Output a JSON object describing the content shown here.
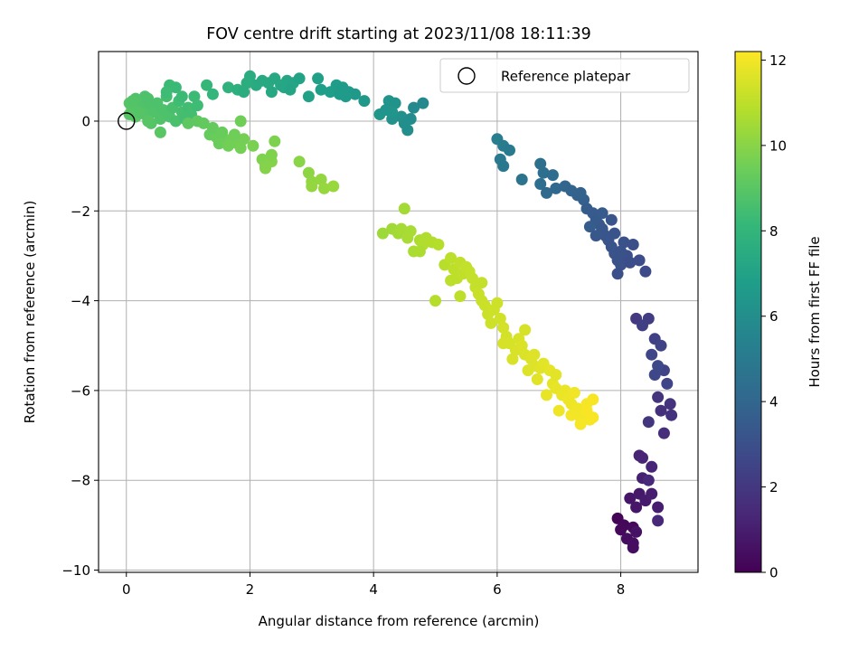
{
  "chart_data": {
    "type": "scatter",
    "title": "FOV centre drift starting at 2023/11/08 18:11:39",
    "xlabel": "Angular distance from reference (arcmin)",
    "ylabel": "Rotation from reference (arcmin)",
    "xlim": [
      -0.45,
      9.25
    ],
    "ylim": [
      -10.05,
      1.55
    ],
    "xticks": [
      0,
      2,
      4,
      6,
      8
    ],
    "yticks": [
      0,
      -2,
      -4,
      -6,
      -8,
      -10
    ],
    "ytick_labels": [
      "0",
      "−2",
      "−4",
      "−6",
      "−8",
      "−10"
    ],
    "grid": true,
    "legend": {
      "position": "top-right",
      "label": "Reference platepar"
    },
    "reference_point": {
      "x": 0,
      "y": 0,
      "marker": "hollow-circle"
    },
    "colorbar": {
      "label": "Hours from first FF file",
      "min": 0,
      "max": 12.2,
      "ticks": [
        0,
        2,
        4,
        6,
        8,
        10,
        12
      ],
      "colormap": "viridis",
      "stops": [
        "#440154",
        "#482878",
        "#3e4989",
        "#31688e",
        "#26828e",
        "#1f9e89",
        "#35b779",
        "#6ece58",
        "#b5de2b",
        "#fde725"
      ]
    },
    "points": [
      {
        "x": 7.95,
        "y": -8.85,
        "c": 0.1
      },
      {
        "x": 8.05,
        "y": -9.0,
        "c": 0.2
      },
      {
        "x": 8.2,
        "y": -9.05,
        "c": 0.3
      },
      {
        "x": 8.1,
        "y": -9.3,
        "c": 0.4
      },
      {
        "x": 8.2,
        "y": -9.5,
        "c": 0.5
      },
      {
        "x": 8.25,
        "y": -9.15,
        "c": 0.6
      },
      {
        "x": 8.15,
        "y": -8.4,
        "c": 0.7
      },
      {
        "x": 8.3,
        "y": -8.3,
        "c": 0.8
      },
      {
        "x": 8.4,
        "y": -8.45,
        "c": 0.9
      },
      {
        "x": 8.6,
        "y": -8.6,
        "c": 1.0
      },
      {
        "x": 8.35,
        "y": -7.95,
        "c": 1.1
      },
      {
        "x": 8.3,
        "y": -7.45,
        "c": 1.2
      },
      {
        "x": 8.5,
        "y": -7.7,
        "c": 1.3
      },
      {
        "x": 8.45,
        "y": -8.0,
        "c": 1.35
      },
      {
        "x": 8.6,
        "y": -8.9,
        "c": 1.4
      },
      {
        "x": 8.0,
        "y": -9.1,
        "c": 0.25
      },
      {
        "x": 8.25,
        "y": -8.6,
        "c": 0.75
      },
      {
        "x": 8.5,
        "y": -8.3,
        "c": 1.0
      },
      {
        "x": 8.35,
        "y": -7.5,
        "c": 1.25
      },
      {
        "x": 8.2,
        "y": -9.4,
        "c": 0.45
      },
      {
        "x": 8.25,
        "y": -4.4,
        "c": 2.1
      },
      {
        "x": 8.45,
        "y": -4.4,
        "c": 2.2
      },
      {
        "x": 8.35,
        "y": -4.55,
        "c": 2.3
      },
      {
        "x": 8.55,
        "y": -4.85,
        "c": 2.4
      },
      {
        "x": 8.65,
        "y": -5.0,
        "c": 2.45
      },
      {
        "x": 8.7,
        "y": -5.55,
        "c": 2.5
      },
      {
        "x": 8.75,
        "y": -5.85,
        "c": 2.55
      },
      {
        "x": 8.5,
        "y": -5.2,
        "c": 2.6
      },
      {
        "x": 8.55,
        "y": -5.65,
        "c": 2.65
      },
      {
        "x": 8.6,
        "y": -5.45,
        "c": 2.7
      },
      {
        "x": 8.8,
        "y": -6.3,
        "c": 1.8
      },
      {
        "x": 8.82,
        "y": -6.55,
        "c": 1.75
      },
      {
        "x": 8.65,
        "y": -6.45,
        "c": 1.7
      },
      {
        "x": 8.7,
        "y": -6.95,
        "c": 1.6
      },
      {
        "x": 8.45,
        "y": -6.7,
        "c": 1.9
      },
      {
        "x": 8.6,
        "y": -6.15,
        "c": 1.85
      },
      {
        "x": 6.0,
        "y": -0.4,
        "c": 5.2
      },
      {
        "x": 6.1,
        "y": -0.55,
        "c": 5.1
      },
      {
        "x": 6.2,
        "y": -0.65,
        "c": 5.0
      },
      {
        "x": 6.05,
        "y": -0.85,
        "c": 5.0
      },
      {
        "x": 6.1,
        "y": -1.0,
        "c": 4.9
      },
      {
        "x": 6.4,
        "y": -1.3,
        "c": 4.7
      },
      {
        "x": 6.7,
        "y": -0.95,
        "c": 4.5
      },
      {
        "x": 6.75,
        "y": -1.15,
        "c": 4.4
      },
      {
        "x": 6.9,
        "y": -1.2,
        "c": 4.3
      },
      {
        "x": 6.7,
        "y": -1.4,
        "c": 4.4
      },
      {
        "x": 6.8,
        "y": -1.6,
        "c": 4.2
      },
      {
        "x": 6.95,
        "y": -1.5,
        "c": 4.1
      },
      {
        "x": 7.1,
        "y": -1.45,
        "c": 4.0
      },
      {
        "x": 7.2,
        "y": -1.55,
        "c": 3.9
      },
      {
        "x": 7.3,
        "y": -1.65,
        "c": 3.8
      },
      {
        "x": 7.4,
        "y": -1.75,
        "c": 3.7
      },
      {
        "x": 7.45,
        "y": -1.95,
        "c": 3.6
      },
      {
        "x": 7.55,
        "y": -2.05,
        "c": 3.5
      },
      {
        "x": 7.6,
        "y": -2.2,
        "c": 3.45
      },
      {
        "x": 7.65,
        "y": -2.3,
        "c": 3.4
      },
      {
        "x": 7.7,
        "y": -2.4,
        "c": 3.35
      },
      {
        "x": 7.75,
        "y": -2.55,
        "c": 3.3
      },
      {
        "x": 7.8,
        "y": -2.65,
        "c": 3.25
      },
      {
        "x": 7.85,
        "y": -2.8,
        "c": 3.2
      },
      {
        "x": 7.9,
        "y": -2.95,
        "c": 3.15
      },
      {
        "x": 7.95,
        "y": -3.1,
        "c": 3.1
      },
      {
        "x": 8.0,
        "y": -3.2,
        "c": 3.05
      },
      {
        "x": 8.1,
        "y": -3.0,
        "c": 3.0
      },
      {
        "x": 8.2,
        "y": -2.75,
        "c": 2.95
      },
      {
        "x": 8.3,
        "y": -3.1,
        "c": 2.9
      },
      {
        "x": 8.4,
        "y": -3.35,
        "c": 2.8
      },
      {
        "x": 7.95,
        "y": -3.4,
        "c": 3.0
      },
      {
        "x": 7.85,
        "y": -2.2,
        "c": 3.3
      },
      {
        "x": 7.9,
        "y": -2.5,
        "c": 3.2
      },
      {
        "x": 8.0,
        "y": -2.9,
        "c": 3.1
      },
      {
        "x": 7.7,
        "y": -2.05,
        "c": 3.5
      },
      {
        "x": 7.5,
        "y": -2.35,
        "c": 3.55
      },
      {
        "x": 7.35,
        "y": -1.6,
        "c": 3.85
      },
      {
        "x": 7.6,
        "y": -2.55,
        "c": 3.35
      },
      {
        "x": 8.05,
        "y": -2.7,
        "c": 3.05
      },
      {
        "x": 8.15,
        "y": -3.15,
        "c": 2.95
      },
      {
        "x": 4.1,
        "y": 0.15,
        "c": 6.4
      },
      {
        "x": 4.25,
        "y": 0.45,
        "c": 6.3
      },
      {
        "x": 4.35,
        "y": 0.4,
        "c": 6.25
      },
      {
        "x": 4.2,
        "y": 0.25,
        "c": 6.35
      },
      {
        "x": 4.3,
        "y": 0.05,
        "c": 6.2
      },
      {
        "x": 4.45,
        "y": 0.1,
        "c": 6.1
      },
      {
        "x": 4.55,
        "y": -0.2,
        "c": 6.0
      },
      {
        "x": 4.6,
        "y": 0.05,
        "c": 5.9
      },
      {
        "x": 4.65,
        "y": 0.3,
        "c": 5.8
      },
      {
        "x": 4.8,
        "y": 0.4,
        "c": 5.7
      },
      {
        "x": 4.5,
        "y": -0.05,
        "c": 6.05
      },
      {
        "x": 4.3,
        "y": 0.2,
        "c": 6.3
      },
      {
        "x": 1.1,
        "y": 0.55,
        "c": 8.3
      },
      {
        "x": 1.3,
        "y": 0.8,
        "c": 8.1
      },
      {
        "x": 1.4,
        "y": 0.6,
        "c": 8.0
      },
      {
        "x": 1.65,
        "y": 0.75,
        "c": 7.8
      },
      {
        "x": 1.8,
        "y": 0.7,
        "c": 7.7
      },
      {
        "x": 1.9,
        "y": 0.65,
        "c": 7.6
      },
      {
        "x": 2.0,
        "y": 1.0,
        "c": 7.5
      },
      {
        "x": 2.1,
        "y": 0.8,
        "c": 7.45
      },
      {
        "x": 2.2,
        "y": 0.9,
        "c": 7.4
      },
      {
        "x": 2.3,
        "y": 0.85,
        "c": 7.35
      },
      {
        "x": 2.4,
        "y": 0.95,
        "c": 7.3
      },
      {
        "x": 2.5,
        "y": 0.8,
        "c": 7.25
      },
      {
        "x": 2.6,
        "y": 0.9,
        "c": 7.2
      },
      {
        "x": 2.7,
        "y": 0.85,
        "c": 7.15
      },
      {
        "x": 2.55,
        "y": 0.75,
        "c": 7.2
      },
      {
        "x": 2.65,
        "y": 0.7,
        "c": 7.1
      },
      {
        "x": 2.8,
        "y": 0.95,
        "c": 7.05
      },
      {
        "x": 2.95,
        "y": 0.55,
        "c": 6.95
      },
      {
        "x": 3.1,
        "y": 0.95,
        "c": 6.9
      },
      {
        "x": 3.15,
        "y": 0.7,
        "c": 6.85
      },
      {
        "x": 3.3,
        "y": 0.65,
        "c": 6.8
      },
      {
        "x": 3.4,
        "y": 0.8,
        "c": 6.75
      },
      {
        "x": 3.5,
        "y": 0.75,
        "c": 6.7
      },
      {
        "x": 3.45,
        "y": 0.6,
        "c": 6.7
      },
      {
        "x": 3.6,
        "y": 0.65,
        "c": 6.6
      },
      {
        "x": 3.7,
        "y": 0.6,
        "c": 6.55
      },
      {
        "x": 3.85,
        "y": 0.45,
        "c": 6.5
      },
      {
        "x": 3.55,
        "y": 0.55,
        "c": 6.65
      },
      {
        "x": 2.35,
        "y": 0.65,
        "c": 7.3
      },
      {
        "x": 1.95,
        "y": 0.85,
        "c": 7.6
      },
      {
        "x": 0.05,
        "y": 0.4,
        "c": 8.9
      },
      {
        "x": 0.1,
        "y": 0.3,
        "c": 8.9
      },
      {
        "x": 0.15,
        "y": 0.1,
        "c": 9.0
      },
      {
        "x": 0.2,
        "y": 0.45,
        "c": 8.85
      },
      {
        "x": 0.25,
        "y": 0.3,
        "c": 8.8
      },
      {
        "x": 0.3,
        "y": 0.15,
        "c": 8.85
      },
      {
        "x": 0.35,
        "y": 0.5,
        "c": 8.7
      },
      {
        "x": 0.4,
        "y": 0.35,
        "c": 8.75
      },
      {
        "x": 0.45,
        "y": 0.2,
        "c": 8.8
      },
      {
        "x": 0.5,
        "y": 0.4,
        "c": 8.7
      },
      {
        "x": 0.55,
        "y": 0.05,
        "c": 8.8
      },
      {
        "x": 0.6,
        "y": 0.25,
        "c": 8.7
      },
      {
        "x": 0.7,
        "y": 0.1,
        "c": 8.7
      },
      {
        "x": 0.75,
        "y": 0.3,
        "c": 8.6
      },
      {
        "x": 0.8,
        "y": 0.0,
        "c": 8.65
      },
      {
        "x": 0.9,
        "y": 0.2,
        "c": 8.55
      },
      {
        "x": 0.95,
        "y": 0.05,
        "c": 8.5
      },
      {
        "x": 1.0,
        "y": 0.3,
        "c": 8.45
      },
      {
        "x": 0.85,
        "y": 0.45,
        "c": 8.4
      },
      {
        "x": 0.65,
        "y": 0.55,
        "c": 8.5
      },
      {
        "x": 0.7,
        "y": 0.8,
        "c": 8.3
      },
      {
        "x": 0.8,
        "y": 0.75,
        "c": 8.25
      },
      {
        "x": 0.65,
        "y": 0.65,
        "c": 8.35
      },
      {
        "x": 0.9,
        "y": 0.55,
        "c": 8.3
      },
      {
        "x": 1.05,
        "y": 0.15,
        "c": 8.5
      },
      {
        "x": 1.15,
        "y": 0.35,
        "c": 8.35
      },
      {
        "x": 0.3,
        "y": 0.55,
        "c": 8.7
      },
      {
        "x": 0.15,
        "y": 0.5,
        "c": 8.8
      },
      {
        "x": 0.55,
        "y": -0.25,
        "c": 9.0
      },
      {
        "x": 0.4,
        "y": -0.05,
        "c": 8.9
      },
      {
        "x": 0.2,
        "y": 0.2,
        "c": 8.9
      },
      {
        "x": 0.35,
        "y": 0.0,
        "c": 8.95
      },
      {
        "x": 0.05,
        "y": 0.15,
        "c": 8.95
      },
      {
        "x": 0.1,
        "y": 0.45,
        "c": 8.85
      },
      {
        "x": 1.0,
        "y": -0.05,
        "c": 9.1
      },
      {
        "x": 1.15,
        "y": 0.0,
        "c": 9.15
      },
      {
        "x": 1.25,
        "y": -0.05,
        "c": 9.2
      },
      {
        "x": 1.35,
        "y": -0.3,
        "c": 9.3
      },
      {
        "x": 1.45,
        "y": -0.35,
        "c": 9.35
      },
      {
        "x": 1.5,
        "y": -0.5,
        "c": 9.4
      },
      {
        "x": 1.6,
        "y": -0.45,
        "c": 9.45
      },
      {
        "x": 1.7,
        "y": -0.4,
        "c": 9.5
      },
      {
        "x": 1.8,
        "y": -0.5,
        "c": 9.55
      },
      {
        "x": 1.9,
        "y": -0.4,
        "c": 9.6
      },
      {
        "x": 1.85,
        "y": -0.6,
        "c": 9.6
      },
      {
        "x": 2.05,
        "y": -0.55,
        "c": 9.7
      },
      {
        "x": 1.4,
        "y": -0.15,
        "c": 9.25
      },
      {
        "x": 1.55,
        "y": -0.25,
        "c": 9.35
      },
      {
        "x": 1.85,
        "y": 0.0,
        "c": 9.5
      },
      {
        "x": 1.65,
        "y": -0.55,
        "c": 9.55
      },
      {
        "x": 1.75,
        "y": -0.3,
        "c": 9.5
      },
      {
        "x": 2.2,
        "y": -0.85,
        "c": 9.8
      },
      {
        "x": 2.25,
        "y": -1.0,
        "c": 9.85
      },
      {
        "x": 2.35,
        "y": -0.9,
        "c": 9.9
      },
      {
        "x": 2.4,
        "y": -0.45,
        "c": 9.75
      },
      {
        "x": 2.35,
        "y": -0.75,
        "c": 9.8
      },
      {
        "x": 2.25,
        "y": -1.05,
        "c": 9.9
      },
      {
        "x": 2.8,
        "y": -0.9,
        "c": 10.0
      },
      {
        "x": 2.95,
        "y": -1.15,
        "c": 10.1
      },
      {
        "x": 3.0,
        "y": -1.35,
        "c": 10.15
      },
      {
        "x": 3.0,
        "y": -1.45,
        "c": 10.2
      },
      {
        "x": 3.15,
        "y": -1.3,
        "c": 10.2
      },
      {
        "x": 3.2,
        "y": -1.5,
        "c": 10.25
      },
      {
        "x": 3.35,
        "y": -1.45,
        "c": 10.3
      },
      {
        "x": 4.15,
        "y": -2.5,
        "c": 10.4
      },
      {
        "x": 4.3,
        "y": -2.4,
        "c": 10.45
      },
      {
        "x": 4.4,
        "y": -2.5,
        "c": 10.5
      },
      {
        "x": 4.45,
        "y": -2.4,
        "c": 10.55
      },
      {
        "x": 4.5,
        "y": -1.95,
        "c": 10.5
      },
      {
        "x": 4.55,
        "y": -2.6,
        "c": 10.6
      },
      {
        "x": 4.6,
        "y": -2.45,
        "c": 10.6
      },
      {
        "x": 4.65,
        "y": -2.9,
        "c": 10.65
      },
      {
        "x": 4.75,
        "y": -2.65,
        "c": 10.7
      },
      {
        "x": 4.8,
        "y": -2.75,
        "c": 10.75
      },
      {
        "x": 4.85,
        "y": -2.6,
        "c": 10.75
      },
      {
        "x": 4.75,
        "y": -2.9,
        "c": 10.7
      },
      {
        "x": 4.95,
        "y": -2.7,
        "c": 10.8
      },
      {
        "x": 5.05,
        "y": -2.75,
        "c": 10.85
      },
      {
        "x": 5.15,
        "y": -3.2,
        "c": 10.9
      },
      {
        "x": 5.25,
        "y": -3.05,
        "c": 10.95
      },
      {
        "x": 5.3,
        "y": -3.3,
        "c": 11.0
      },
      {
        "x": 5.35,
        "y": -3.5,
        "c": 11.0
      },
      {
        "x": 5.4,
        "y": -3.15,
        "c": 11.05
      },
      {
        "x": 5.45,
        "y": -3.4,
        "c": 11.05
      },
      {
        "x": 5.5,
        "y": -3.25,
        "c": 11.1
      },
      {
        "x": 5.55,
        "y": -3.35,
        "c": 11.1
      },
      {
        "x": 5.6,
        "y": -3.5,
        "c": 11.15
      },
      {
        "x": 5.65,
        "y": -3.7,
        "c": 11.15
      },
      {
        "x": 5.7,
        "y": -3.85,
        "c": 11.2
      },
      {
        "x": 5.75,
        "y": -4.0,
        "c": 11.2
      },
      {
        "x": 5.8,
        "y": -4.1,
        "c": 11.25
      },
      {
        "x": 5.85,
        "y": -4.3,
        "c": 11.25
      },
      {
        "x": 5.9,
        "y": -4.5,
        "c": 11.3
      },
      {
        "x": 5.95,
        "y": -4.2,
        "c": 11.3
      },
      {
        "x": 6.05,
        "y": -4.4,
        "c": 11.35
      },
      {
        "x": 6.1,
        "y": -4.6,
        "c": 11.4
      },
      {
        "x": 6.15,
        "y": -4.8,
        "c": 11.4
      },
      {
        "x": 6.2,
        "y": -4.95,
        "c": 11.45
      },
      {
        "x": 6.3,
        "y": -5.1,
        "c": 11.5
      },
      {
        "x": 6.35,
        "y": -4.85,
        "c": 11.5
      },
      {
        "x": 6.4,
        "y": -5.0,
        "c": 11.55
      },
      {
        "x": 6.45,
        "y": -5.2,
        "c": 11.55
      },
      {
        "x": 6.55,
        "y": -5.3,
        "c": 11.6
      },
      {
        "x": 6.6,
        "y": -5.45,
        "c": 11.6
      },
      {
        "x": 6.7,
        "y": -5.5,
        "c": 11.65
      },
      {
        "x": 6.5,
        "y": -5.55,
        "c": 11.6
      },
      {
        "x": 6.65,
        "y": -5.75,
        "c": 11.65
      },
      {
        "x": 6.75,
        "y": -5.4,
        "c": 11.7
      },
      {
        "x": 6.85,
        "y": -5.55,
        "c": 11.75
      },
      {
        "x": 6.9,
        "y": -5.85,
        "c": 11.75
      },
      {
        "x": 6.95,
        "y": -5.95,
        "c": 11.8
      },
      {
        "x": 7.05,
        "y": -6.1,
        "c": 11.85
      },
      {
        "x": 7.1,
        "y": -6.0,
        "c": 11.85
      },
      {
        "x": 7.15,
        "y": -6.2,
        "c": 11.9
      },
      {
        "x": 7.2,
        "y": -6.3,
        "c": 11.9
      },
      {
        "x": 7.25,
        "y": -6.05,
        "c": 11.95
      },
      {
        "x": 7.3,
        "y": -6.4,
        "c": 11.95
      },
      {
        "x": 7.35,
        "y": -6.6,
        "c": 12.0
      },
      {
        "x": 7.4,
        "y": -6.5,
        "c": 12.0
      },
      {
        "x": 7.45,
        "y": -6.3,
        "c": 12.05
      },
      {
        "x": 7.5,
        "y": -6.65,
        "c": 12.05
      },
      {
        "x": 7.55,
        "y": -6.6,
        "c": 12.1
      },
      {
        "x": 7.55,
        "y": -6.2,
        "c": 12.1
      },
      {
        "x": 7.2,
        "y": -6.55,
        "c": 12.0
      },
      {
        "x": 7.0,
        "y": -6.45,
        "c": 11.9
      },
      {
        "x": 6.8,
        "y": -6.1,
        "c": 11.8
      },
      {
        "x": 7.35,
        "y": -6.75,
        "c": 12.05
      },
      {
        "x": 7.45,
        "y": -6.45,
        "c": 12.1
      },
      {
        "x": 5.4,
        "y": -3.9,
        "c": 11.0
      },
      {
        "x": 5.25,
        "y": -3.55,
        "c": 10.95
      },
      {
        "x": 5.0,
        "y": -4.0,
        "c": 10.85
      },
      {
        "x": 5.75,
        "y": -3.6,
        "c": 11.15
      },
      {
        "x": 6.0,
        "y": -4.05,
        "c": 11.3
      },
      {
        "x": 6.25,
        "y": -5.3,
        "c": 11.5
      },
      {
        "x": 6.45,
        "y": -4.65,
        "c": 11.45
      },
      {
        "x": 6.1,
        "y": -4.95,
        "c": 11.45
      },
      {
        "x": 6.6,
        "y": -5.2,
        "c": 11.6
      },
      {
        "x": 6.95,
        "y": -5.65,
        "c": 11.7
      }
    ]
  }
}
